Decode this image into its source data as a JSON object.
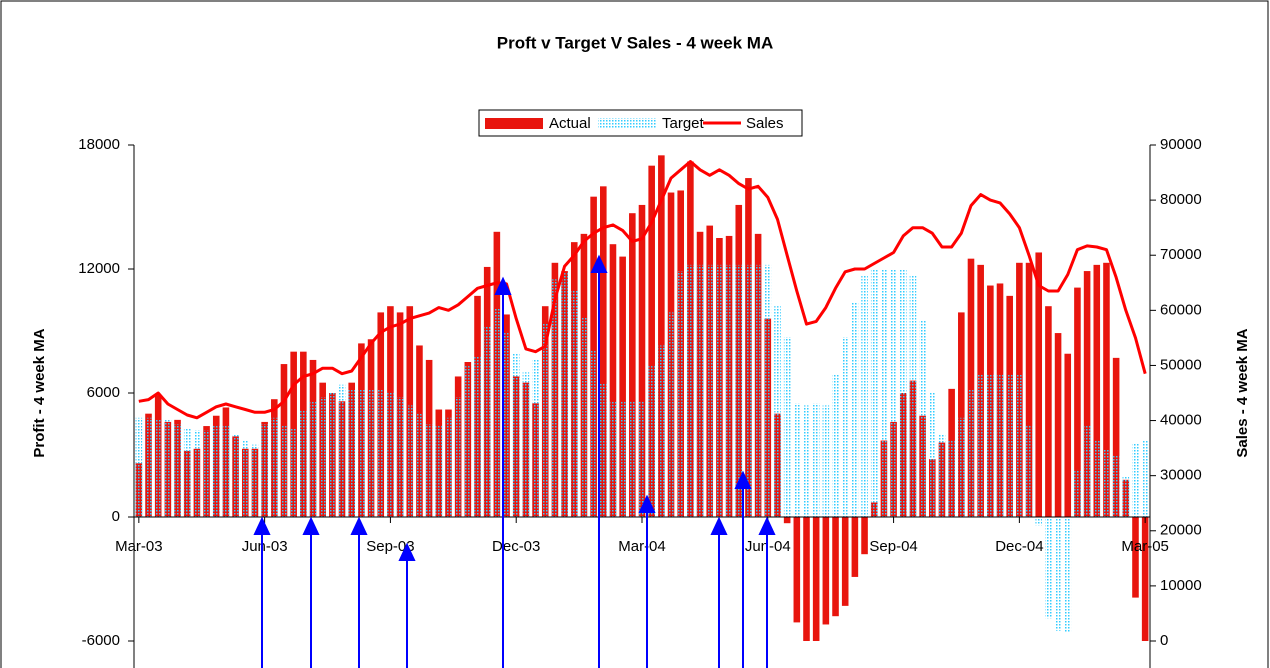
{
  "chart_data": {
    "type": "bar",
    "title": "Proft v Target V Sales - 4 week MA",
    "y_label": "Profit - 4 week MA",
    "y2_label": "Sales - 4 week MA",
    "categories": [
      "Mar-03",
      null,
      null,
      null,
      null,
      null,
      null,
      null,
      null,
      null,
      null,
      null,
      null,
      "Jun-03",
      null,
      null,
      null,
      null,
      null,
      null,
      null,
      null,
      null,
      null,
      null,
      null,
      "Sep-03",
      null,
      null,
      null,
      null,
      null,
      null,
      null,
      null,
      null,
      null,
      null,
      null,
      "Dec-03",
      null,
      null,
      null,
      null,
      null,
      null,
      null,
      null,
      null,
      null,
      null,
      null,
      "Mar-04",
      null,
      null,
      null,
      null,
      null,
      null,
      null,
      null,
      null,
      null,
      null,
      null,
      "Jun-04",
      null,
      null,
      null,
      null,
      null,
      null,
      null,
      null,
      null,
      null,
      null,
      null,
      "Sep-04",
      null,
      null,
      null,
      null,
      null,
      null,
      null,
      null,
      null,
      null,
      null,
      null,
      "Dec-04",
      null,
      null,
      null,
      null,
      null,
      null,
      null,
      null,
      null,
      null,
      null,
      null,
      "Mar-05"
    ],
    "series": [
      {
        "name": "Actual",
        "type": "bar",
        "color": "#e8150e",
        "values": [
          2600,
          5000,
          5900,
          4600,
          4700,
          3200,
          3300,
          4400,
          4900,
          5300,
          3900,
          3300,
          3300,
          4600,
          5700,
          7400,
          8000,
          8000,
          7600,
          6500,
          6000,
          5600,
          6500,
          8400,
          8600,
          9900,
          10200,
          9900,
          10200,
          8300,
          7600,
          5200,
          5200,
          6800,
          7500,
          10700,
          12100,
          13800,
          9800,
          6800,
          6500,
          5500,
          10200,
          12300,
          11900,
          13300,
          13700,
          15500,
          16000,
          13200,
          12600,
          14700,
          15100,
          17000,
          17500,
          15700,
          15800,
          17200,
          13800,
          14100,
          13500,
          13600,
          15100,
          16400,
          13700,
          9600,
          5000,
          -300,
          -5100,
          -6000,
          -6000,
          -5200,
          -4800,
          -4300,
          -2900,
          -1800,
          700,
          3700,
          4600,
          6000,
          6600,
          4900,
          2800,
          3600,
          6200,
          9900,
          12500,
          12200,
          11200,
          11300,
          10700,
          12300,
          12300,
          12800,
          10200,
          8900,
          7900,
          11100,
          11900,
          12200,
          12300,
          7700,
          1800,
          -3900,
          -6000
        ]
      },
      {
        "name": "Target",
        "type": "bar",
        "color": "#33ccff",
        "values": [
          4800,
          4800,
          4700,
          4700,
          4500,
          4300,
          4200,
          4200,
          4400,
          4400,
          4000,
          3700,
          3500,
          4500,
          4800,
          4400,
          4300,
          5200,
          5600,
          5800,
          6000,
          6400,
          6200,
          6200,
          6200,
          6200,
          6000,
          5800,
          5400,
          5000,
          4500,
          4400,
          4800,
          5800,
          7300,
          7800,
          9200,
          10100,
          8900,
          7900,
          7000,
          7600,
          9400,
          11500,
          11800,
          11000,
          9700,
          8100,
          6500,
          5600,
          5600,
          5600,
          5600,
          7300,
          8300,
          9900,
          11900,
          12200,
          12200,
          12200,
          12200,
          12200,
          12200,
          12200,
          12200,
          12200,
          10200,
          8700,
          5500,
          5400,
          5500,
          5400,
          6900,
          8700,
          10400,
          11700,
          12000,
          12000,
          12000,
          12000,
          11700,
          9500,
          6000,
          4000,
          3700,
          4800,
          6200,
          6900,
          6900,
          6900,
          6900,
          6900,
          4400,
          -400,
          -4900,
          -5500,
          -5600,
          2300,
          4400,
          3700,
          3300,
          3000,
          2000,
          3600,
          3700
        ]
      },
      {
        "name": "Sales",
        "type": "line",
        "axis": "y2",
        "color": "#ff0000",
        "values": [
          43500,
          43800,
          45000,
          43000,
          42000,
          41000,
          40500,
          41500,
          42500,
          43000,
          42500,
          42000,
          41500,
          41500,
          42000,
          43500,
          46500,
          48000,
          48500,
          49500,
          49500,
          48500,
          49000,
          51500,
          54000,
          56000,
          57000,
          57500,
          58500,
          59000,
          59500,
          60500,
          60000,
          61000,
          62500,
          64000,
          64500,
          65000,
          64800,
          58500,
          53000,
          52500,
          53500,
          62000,
          68000,
          70000,
          72500,
          74000,
          75000,
          75500,
          74500,
          72500,
          73000,
          76000,
          80000,
          84000,
          85500,
          87000,
          85500,
          84500,
          85500,
          84500,
          83000,
          82000,
          82500,
          80500,
          76500,
          70000,
          63500,
          57500,
          58000,
          60500,
          64000,
          67000,
          67500,
          67500,
          68500,
          69500,
          70500,
          73500,
          75000,
          75000,
          74000,
          71500,
          71500,
          74000,
          79000,
          81000,
          80000,
          79500,
          77500,
          75000,
          70000,
          64500,
          63500,
          63500,
          66500,
          71000,
          71700,
          71500,
          71000,
          66000,
          60000,
          55000,
          48500
        ]
      }
    ],
    "ylim": [
      -6000,
      18000
    ],
    "yticks": [
      -6000,
      0,
      6000,
      12000,
      18000
    ],
    "y2lim": [
      0,
      90000
    ],
    "y2ticks": [
      0,
      10000,
      20000,
      30000,
      40000,
      50000,
      60000,
      70000,
      80000,
      90000
    ],
    "legend": "top"
  }
}
